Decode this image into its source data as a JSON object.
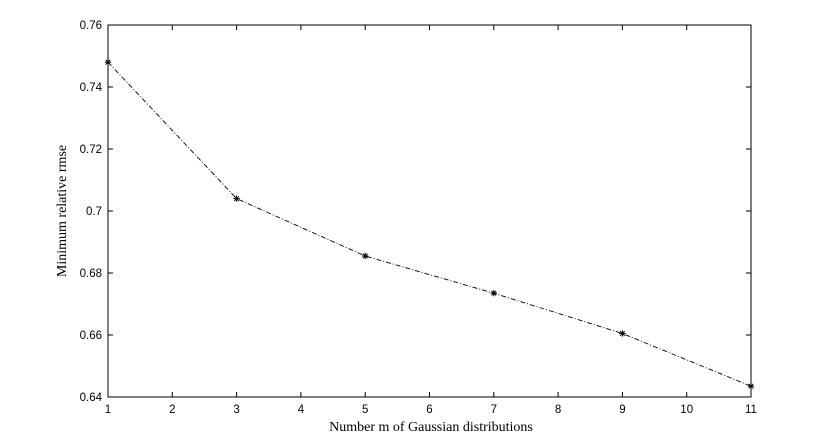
{
  "chart_data": {
    "type": "line",
    "xlabel": "Number m of Gaussian distributions",
    "ylabel": "Minimum relative rmse",
    "xlim": [
      1,
      11
    ],
    "ylim": [
      0.64,
      0.76
    ],
    "xticks": [
      1,
      2,
      3,
      4,
      5,
      6,
      7,
      8,
      9,
      10,
      11
    ],
    "yticks": [
      0.64,
      0.66,
      0.68,
      0.7,
      0.72,
      0.74,
      0.76
    ],
    "xtick_labels": [
      "1",
      "2",
      "3",
      "4",
      "5",
      "6",
      "7",
      "8",
      "9",
      "10",
      "11"
    ],
    "ytick_labels": [
      "0.64",
      "0.66",
      "0.68",
      "0.7",
      "0.72",
      "0.74",
      "0.76"
    ],
    "grid": false,
    "series": [
      {
        "line_style": "dash-dot",
        "marker": "asterisk",
        "color": "#000000",
        "x": [
          1,
          3,
          5,
          7,
          9,
          11
        ],
        "values": [
          0.748,
          0.704,
          0.6855,
          0.6735,
          0.6605,
          0.6435
        ]
      }
    ]
  }
}
